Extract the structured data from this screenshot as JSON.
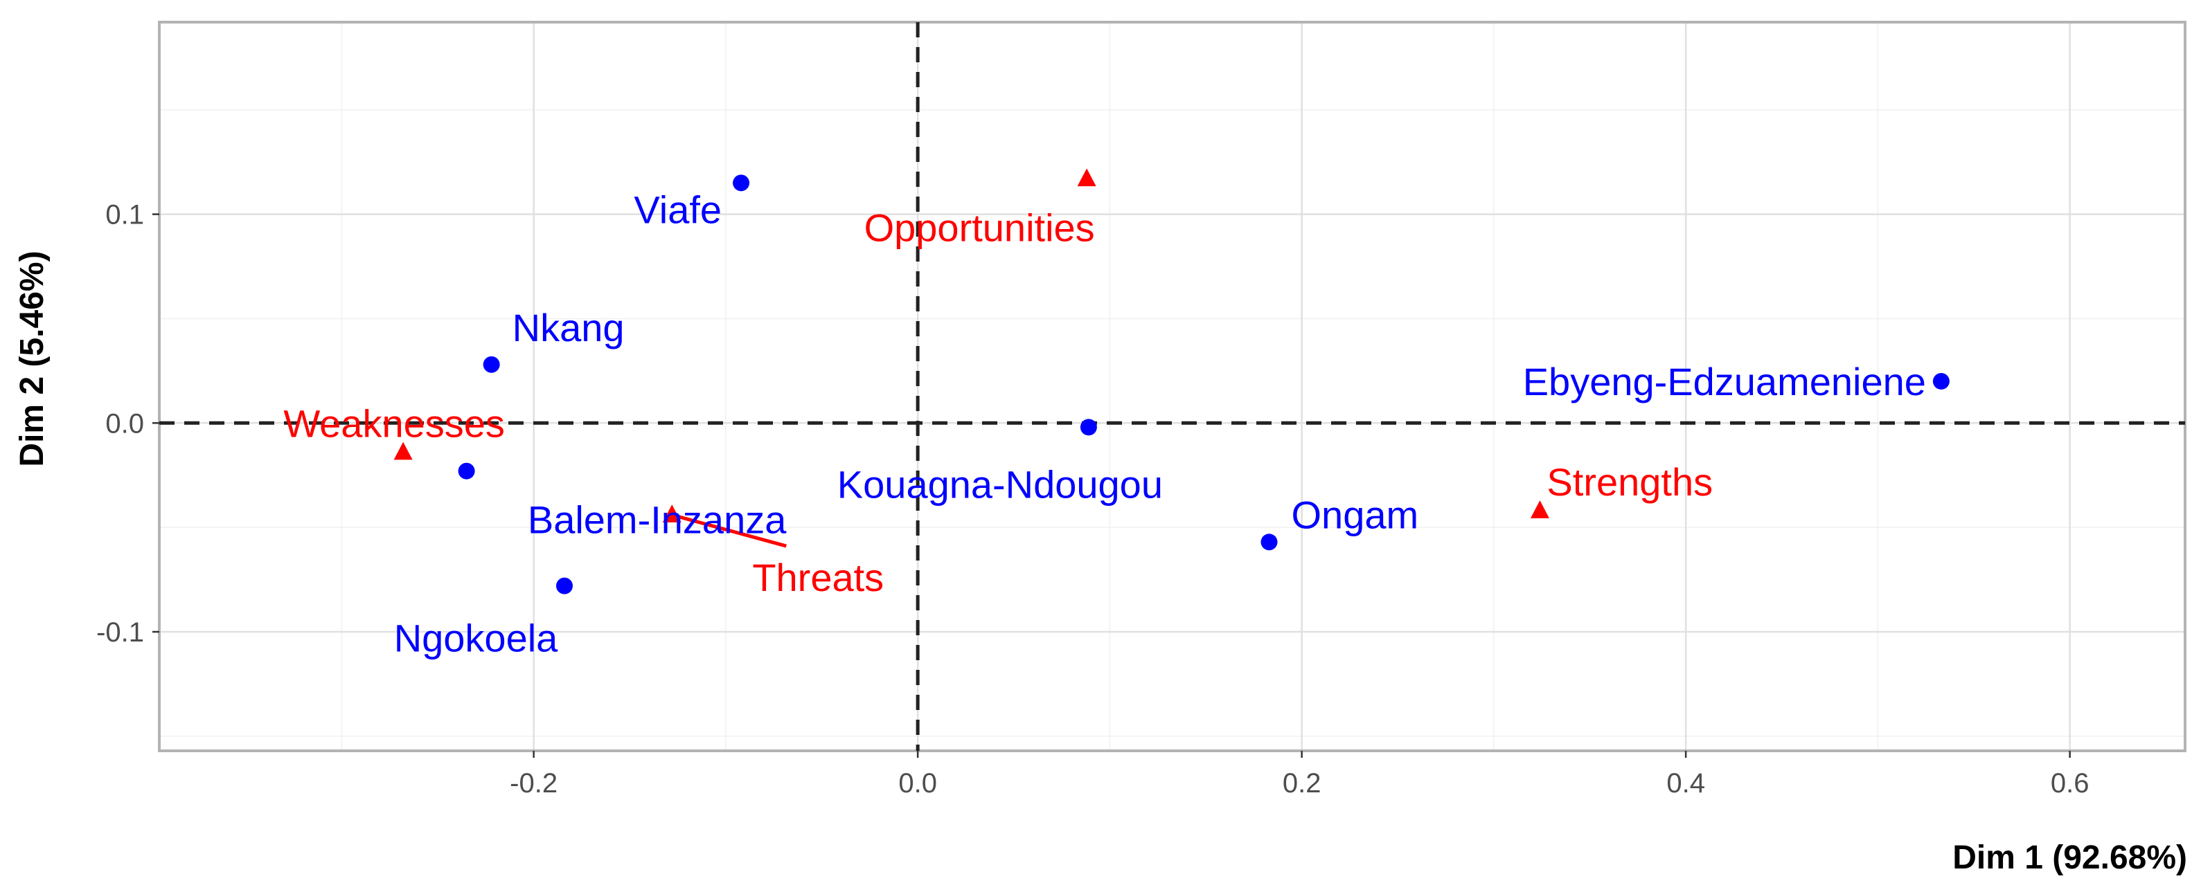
{
  "chart_data": {
    "type": "scatter",
    "title": "",
    "xlabel": "Dim 1 (92.68%)",
    "ylabel": "Dim 2 (5.46%)",
    "xlim": [
      -0.395,
      0.66
    ],
    "ylim": [
      -0.157,
      0.192
    ],
    "x_ticks": [
      -0.2,
      0.0,
      0.2,
      0.4,
      0.6
    ],
    "x_tick_labels": [
      "-0.2",
      "0.0",
      "0.2",
      "0.4",
      "0.6"
    ],
    "y_ticks": [
      -0.1,
      0.0,
      0.1
    ],
    "y_tick_labels": [
      "-0.1",
      "0.0",
      "0.1"
    ],
    "grid": true,
    "reference_lines": {
      "x": 0,
      "y": 0,
      "style": "dashed"
    },
    "series": [
      {
        "name": "",
        "marker": "circle",
        "color": "#0000ff",
        "points": [
          {
            "label": "Viafe",
            "x": -0.092,
            "y": 0.115
          },
          {
            "label": "Nkang",
            "x": -0.222,
            "y": 0.028
          },
          {
            "label": "Balem-Inzanza",
            "x": -0.235,
            "y": -0.023
          },
          {
            "label": "Ngokoela",
            "x": -0.184,
            "y": -0.078
          },
          {
            "label": "Kouagna-Ndougou",
            "x": 0.089,
            "y": -0.002
          },
          {
            "label": "Ongam",
            "x": 0.183,
            "y": -0.057
          },
          {
            "label": "Ebyeng-Edzuameniene",
            "x": 0.533,
            "y": 0.02
          }
        ]
      },
      {
        "name": "",
        "marker": "triangle",
        "color": "#ff0000",
        "points": [
          {
            "label": "Opportunities",
            "x": 0.088,
            "y": 0.117
          },
          {
            "label": "Weaknesses",
            "x": -0.268,
            "y": -0.014
          },
          {
            "label": "Threats",
            "x": -0.128,
            "y": -0.044
          },
          {
            "label": "Strengths",
            "x": 0.324,
            "y": -0.042
          }
        ]
      }
    ]
  }
}
